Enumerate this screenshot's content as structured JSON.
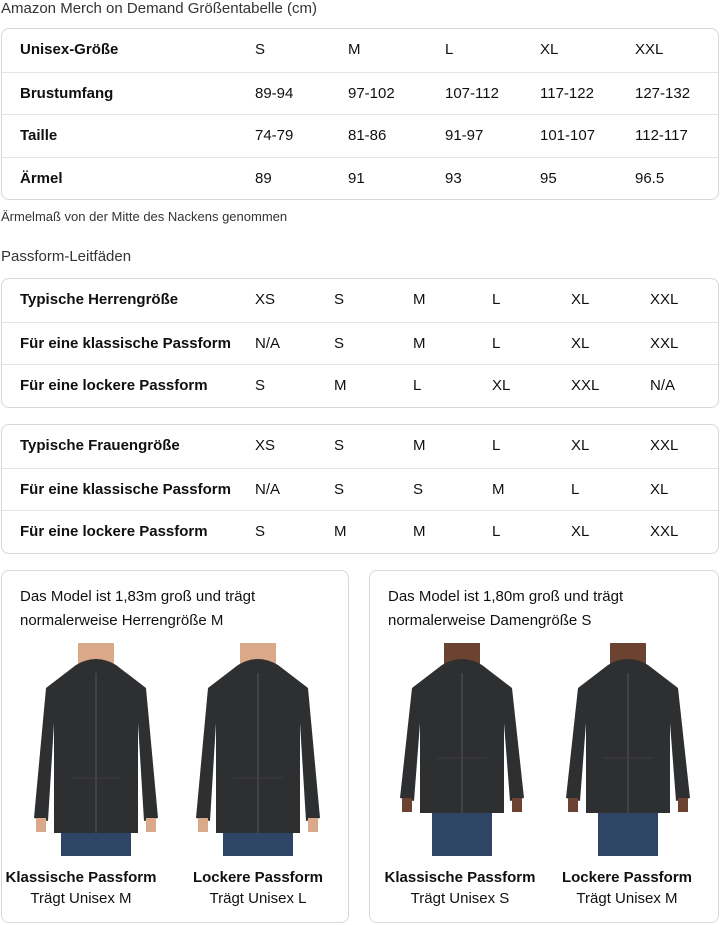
{
  "size_chart": {
    "title": "Amazon Merch on Demand Größentabelle (cm)",
    "rows": [
      {
        "label": "Unisex-Größe",
        "values": [
          "S",
          "M",
          "L",
          "XL",
          "XXL"
        ]
      },
      {
        "label": "Brustumfang",
        "values": [
          "89-94",
          "97-102",
          "107-112",
          "117-122",
          "127-132"
        ]
      },
      {
        "label": "Taille",
        "values": [
          "74-79",
          "81-86",
          "91-97",
          "101-107",
          "112-117"
        ]
      },
      {
        "label": "Ärmel",
        "values": [
          "89",
          "91",
          "93",
          "95",
          "96.5"
        ]
      }
    ],
    "note": "Ärmelmaß von der Mitte des Nackens genommen"
  },
  "fit_guide": {
    "title": "Passform-Leitfäden",
    "men": [
      {
        "label": "Typische Herrengröße",
        "values": [
          "XS",
          "S",
          "M",
          "L",
          "XL",
          "XXL"
        ]
      },
      {
        "label": "Für eine klassische Passform",
        "values": [
          "N/A",
          "S",
          "M",
          "L",
          "XL",
          "XXL"
        ]
      },
      {
        "label": "Für eine lockere Passform",
        "values": [
          "S",
          "M",
          "L",
          "XL",
          "XXL",
          "N/A"
        ]
      }
    ],
    "women": [
      {
        "label": "Typische Frauengröße",
        "values": [
          "XS",
          "S",
          "M",
          "L",
          "XL",
          "XXL"
        ]
      },
      {
        "label": "Für eine klassische Passform",
        "values": [
          "N/A",
          "S",
          "S",
          "M",
          "L",
          "XL"
        ]
      },
      {
        "label": "Für eine lockere Passform",
        "values": [
          "S",
          "M",
          "M",
          "L",
          "XL",
          "XXL"
        ]
      }
    ]
  },
  "models": [
    {
      "desc_line1": "Das Model ist 1,83m groß und trägt",
      "desc_line2": "normalerweise Herrengröße M",
      "fits": [
        {
          "title": "Klassische Passform",
          "sub": "Trägt Unisex M"
        },
        {
          "title": "Lockere Passform",
          "sub": "Trägt Unisex L"
        }
      ]
    },
    {
      "desc_line1": "Das Model ist 1,80m groß und trägt",
      "desc_line2": "normalerweise Damengröße S",
      "fits": [
        {
          "title": "Klassische Passform",
          "sub": "Trägt Unisex S"
        },
        {
          "title": "Lockere Passform",
          "sub": "Trägt Unisex M"
        }
      ]
    }
  ],
  "colors": {
    "border": "#d5d9d9",
    "hoodie": "#2e2f31",
    "jeans": "#2f4566",
    "skin_men": "#d9a98a",
    "skin_women": "#6b4330"
  }
}
